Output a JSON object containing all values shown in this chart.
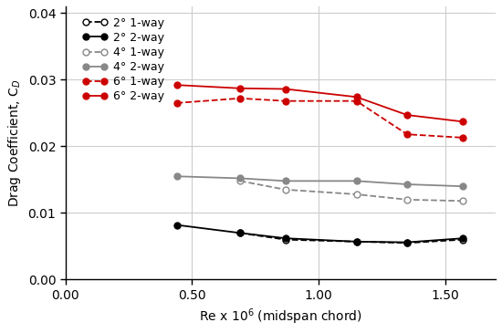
{
  "x_values": [
    0.44,
    0.69,
    0.87,
    1.15,
    1.35,
    1.57
  ],
  "series": [
    {
      "label": "2° 1-way",
      "color": "black",
      "linestyle": "dashed",
      "marker": "o",
      "markerfacecolor": "white",
      "markeredgecolor": "black",
      "linewidth": 1.3,
      "y": [
        null,
        0.007,
        0.006,
        0.0057,
        0.0055,
        0.006
      ]
    },
    {
      "label": "2° 2-way",
      "color": "black",
      "linestyle": "solid",
      "marker": "o",
      "markerfacecolor": "black",
      "markeredgecolor": "black",
      "linewidth": 1.3,
      "y": [
        0.0082,
        0.007,
        0.0062,
        0.0057,
        0.0056,
        0.0062
      ]
    },
    {
      "label": "4° 1-way",
      "color": "#888888",
      "linestyle": "dashed",
      "marker": "o",
      "markerfacecolor": "white",
      "markeredgecolor": "#888888",
      "linewidth": 1.3,
      "y": [
        null,
        0.0148,
        0.0135,
        0.0128,
        0.012,
        0.0118
      ]
    },
    {
      "label": "4° 2-way",
      "color": "#888888",
      "linestyle": "solid",
      "marker": "o",
      "markerfacecolor": "#888888",
      "markeredgecolor": "#888888",
      "linewidth": 1.3,
      "y": [
        0.0155,
        0.0152,
        0.0148,
        0.0148,
        0.0143,
        0.014
      ]
    },
    {
      "label": "6° 1-way",
      "color": "#cc0000",
      "linestyle": "dashed",
      "marker": "o",
      "markerfacecolor": "#cc0000",
      "markeredgecolor": "#cc0000",
      "linewidth": 1.3,
      "y": [
        0.0265,
        0.0272,
        0.0268,
        0.0268,
        0.0218,
        0.0213
      ]
    },
    {
      "label": "6° 2-way",
      "color": "#cc0000",
      "linestyle": "solid",
      "marker": "o",
      "markerfacecolor": "#cc0000",
      "markeredgecolor": "#cc0000",
      "linewidth": 1.3,
      "y": [
        0.0292,
        0.0287,
        0.0286,
        0.0274,
        0.0247,
        0.0237
      ]
    }
  ],
  "xlabel": "Re x 10$^6$ (midspan chord)",
  "ylabel": "Drag Coefficient, C$_D$",
  "xlim": [
    0.0,
    1.7
  ],
  "ylim": [
    0.0,
    0.041
  ],
  "xticks": [
    0.0,
    0.5,
    1.0,
    1.5
  ],
  "yticks": [
    0.0,
    0.01,
    0.02,
    0.03,
    0.04
  ],
  "grid": true,
  "figsize": [
    5.5,
    3.65
  ],
  "dpi": 100,
  "background_color": "white"
}
